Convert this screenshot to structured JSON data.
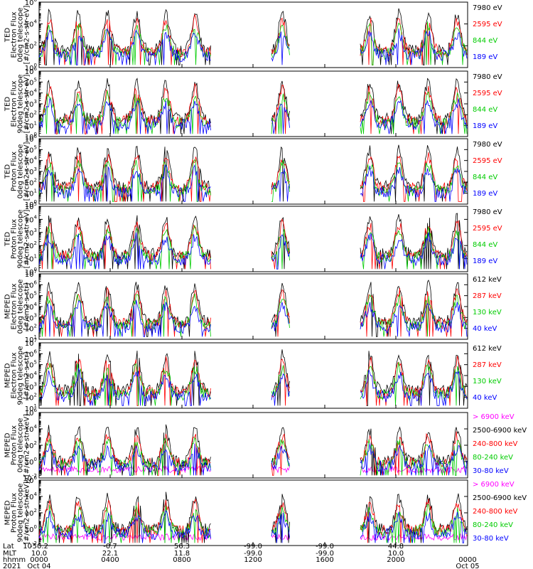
{
  "chart_data": [
    {
      "type": "line",
      "ylabel": [
        "TED",
        "Electron Flux",
        "0deg telescope",
        "[#/cm2-s-str-eV]"
      ],
      "yscale": "log",
      "ylim_exp": [
        0,
        6
      ],
      "yticks_exp": [
        0,
        2,
        4,
        6
      ],
      "legend": [
        {
          "label": "7980 eV",
          "color": "#000000"
        },
        {
          "label": "2595 eV",
          "color": "#ff0000"
        },
        {
          "label": "844 eV",
          "color": "#00cc00"
        },
        {
          "label": "189 eV",
          "color": "#0000ff"
        }
      ]
    },
    {
      "type": "line",
      "ylabel": [
        "TED",
        "Electron Flux",
        "90deg telescope",
        "[#/cm2-s-str-eV]"
      ],
      "yscale": "log",
      "ylim_exp": [
        0,
        6
      ],
      "yticks_exp": [
        0,
        1,
        2,
        3,
        4,
        5,
        6
      ],
      "legend": [
        {
          "label": "7980 eV",
          "color": "#000000"
        },
        {
          "label": "2595 eV",
          "color": "#ff0000"
        },
        {
          "label": "844 eV",
          "color": "#00cc00"
        },
        {
          "label": "189 eV",
          "color": "#0000ff"
        }
      ]
    },
    {
      "type": "line",
      "ylabel": [
        "TED",
        "Proton Flux",
        "0deg telescope",
        "[#/cm2-s-str-eV]"
      ],
      "yscale": "log",
      "ylim_exp": [
        0,
        6
      ],
      "yticks_exp": [
        0,
        1,
        2,
        3,
        4,
        5,
        6
      ],
      "legend": [
        {
          "label": "7980 eV",
          "color": "#000000"
        },
        {
          "label": "2595 eV",
          "color": "#ff0000"
        },
        {
          "label": "844 eV",
          "color": "#00cc00"
        },
        {
          "label": "189 eV",
          "color": "#0000ff"
        }
      ]
    },
    {
      "type": "line",
      "ylabel": [
        "TED",
        "Proton Flux",
        "90deg telescope",
        "[#/cm2-s-str-eV]"
      ],
      "yscale": "log",
      "ylim_exp": [
        0,
        5
      ],
      "yticks_exp": [
        0,
        1,
        2,
        3,
        4,
        5
      ],
      "legend": [
        {
          "label": "7980 eV",
          "color": "#000000"
        },
        {
          "label": "2595 eV",
          "color": "#ff0000"
        },
        {
          "label": "844 eV",
          "color": "#00cc00"
        },
        {
          "label": "189 eV",
          "color": "#0000ff"
        }
      ]
    },
    {
      "type": "line",
      "ylabel": [
        "MEPED",
        "Electron Flux",
        "0deg telescope",
        "[#/cm2-s-str]"
      ],
      "yscale": "log",
      "ylim_exp": [
        1,
        7
      ],
      "yticks_exp": [
        1,
        2,
        3,
        4,
        5,
        6,
        7
      ],
      "legend": [
        {
          "label": "612 keV",
          "color": "#000000"
        },
        {
          "label": "287 keV",
          "color": "#ff0000"
        },
        {
          "label": "130 keV",
          "color": "#00cc00"
        },
        {
          "label": "40 keV",
          "color": "#0000ff"
        }
      ]
    },
    {
      "type": "line",
      "ylabel": [
        "MEPED",
        "Electron Flux",
        "90deg telescope",
        "[#/cm2-s-str]"
      ],
      "yscale": "log",
      "ylim_exp": [
        1,
        7
      ],
      "yticks_exp": [
        1,
        2,
        3,
        4,
        5,
        6,
        7
      ],
      "legend": [
        {
          "label": "612 keV",
          "color": "#000000"
        },
        {
          "label": "287 keV",
          "color": "#ff0000"
        },
        {
          "label": "130 keV",
          "color": "#00cc00"
        },
        {
          "label": "40 keV",
          "color": "#0000ff"
        }
      ]
    },
    {
      "type": "line",
      "ylabel": [
        "MEPED",
        "Proton Flux",
        "0deg telescope",
        "[#/cm2-s-str-keV]"
      ],
      "yscale": "log",
      "ylim_exp": [
        -2,
        6
      ],
      "yticks_exp": [
        -2,
        0,
        2,
        4,
        6
      ],
      "legend": [
        {
          "label": "> 6900 keV",
          "color": "#ff00ff"
        },
        {
          "label": "2500-6900 keV",
          "color": "#000000"
        },
        {
          "label": "240-800 keV",
          "color": "#ff0000"
        },
        {
          "label": "80-240 keV",
          "color": "#00cc00"
        },
        {
          "label": "30-80 keV",
          "color": "#0000ff"
        }
      ]
    },
    {
      "type": "line",
      "ylabel": [
        "MEPED",
        "Proton Flux",
        "90deg telescope",
        "[#/cm2-s-str-keV]"
      ],
      "yscale": "log",
      "ylim_exp": [
        -2,
        6
      ],
      "yticks_exp": [
        -2,
        0,
        2,
        4,
        6
      ],
      "legend": [
        {
          "label": "> 6900 keV",
          "color": "#ff00ff"
        },
        {
          "label": "2500-6900 keV",
          "color": "#000000"
        },
        {
          "label": "240-800 keV",
          "color": "#ff0000"
        },
        {
          "label": "80-240 keV",
          "color": "#00cc00"
        },
        {
          "label": "30-80 keV",
          "color": "#0000ff"
        }
      ]
    }
  ],
  "xaxis": {
    "row_labels": [
      "Lat",
      "MLT",
      "hhmm",
      "2021"
    ],
    "ticks": [
      {
        "lat": "-50.2",
        "mlt": "10.0",
        "hhmm": "0000",
        "date": "Oct 04"
      },
      {
        "lat": "-0.7",
        "mlt": "22.1",
        "hhmm": "0400",
        "date": ""
      },
      {
        "lat": "56.3",
        "mlt": "11.8",
        "hhmm": "0800",
        "date": ""
      },
      {
        "lat": "-99.0",
        "mlt": "-99.0",
        "hhmm": "1200",
        "date": ""
      },
      {
        "lat": "-99.0",
        "mlt": "-99.0",
        "hhmm": "1600",
        "date": ""
      },
      {
        "lat": "44.8",
        "mlt": "10.0",
        "hhmm": "2000",
        "date": ""
      },
      {
        "lat": "",
        "mlt": "",
        "hhmm": "0000",
        "date": "Oct 05"
      }
    ]
  }
}
